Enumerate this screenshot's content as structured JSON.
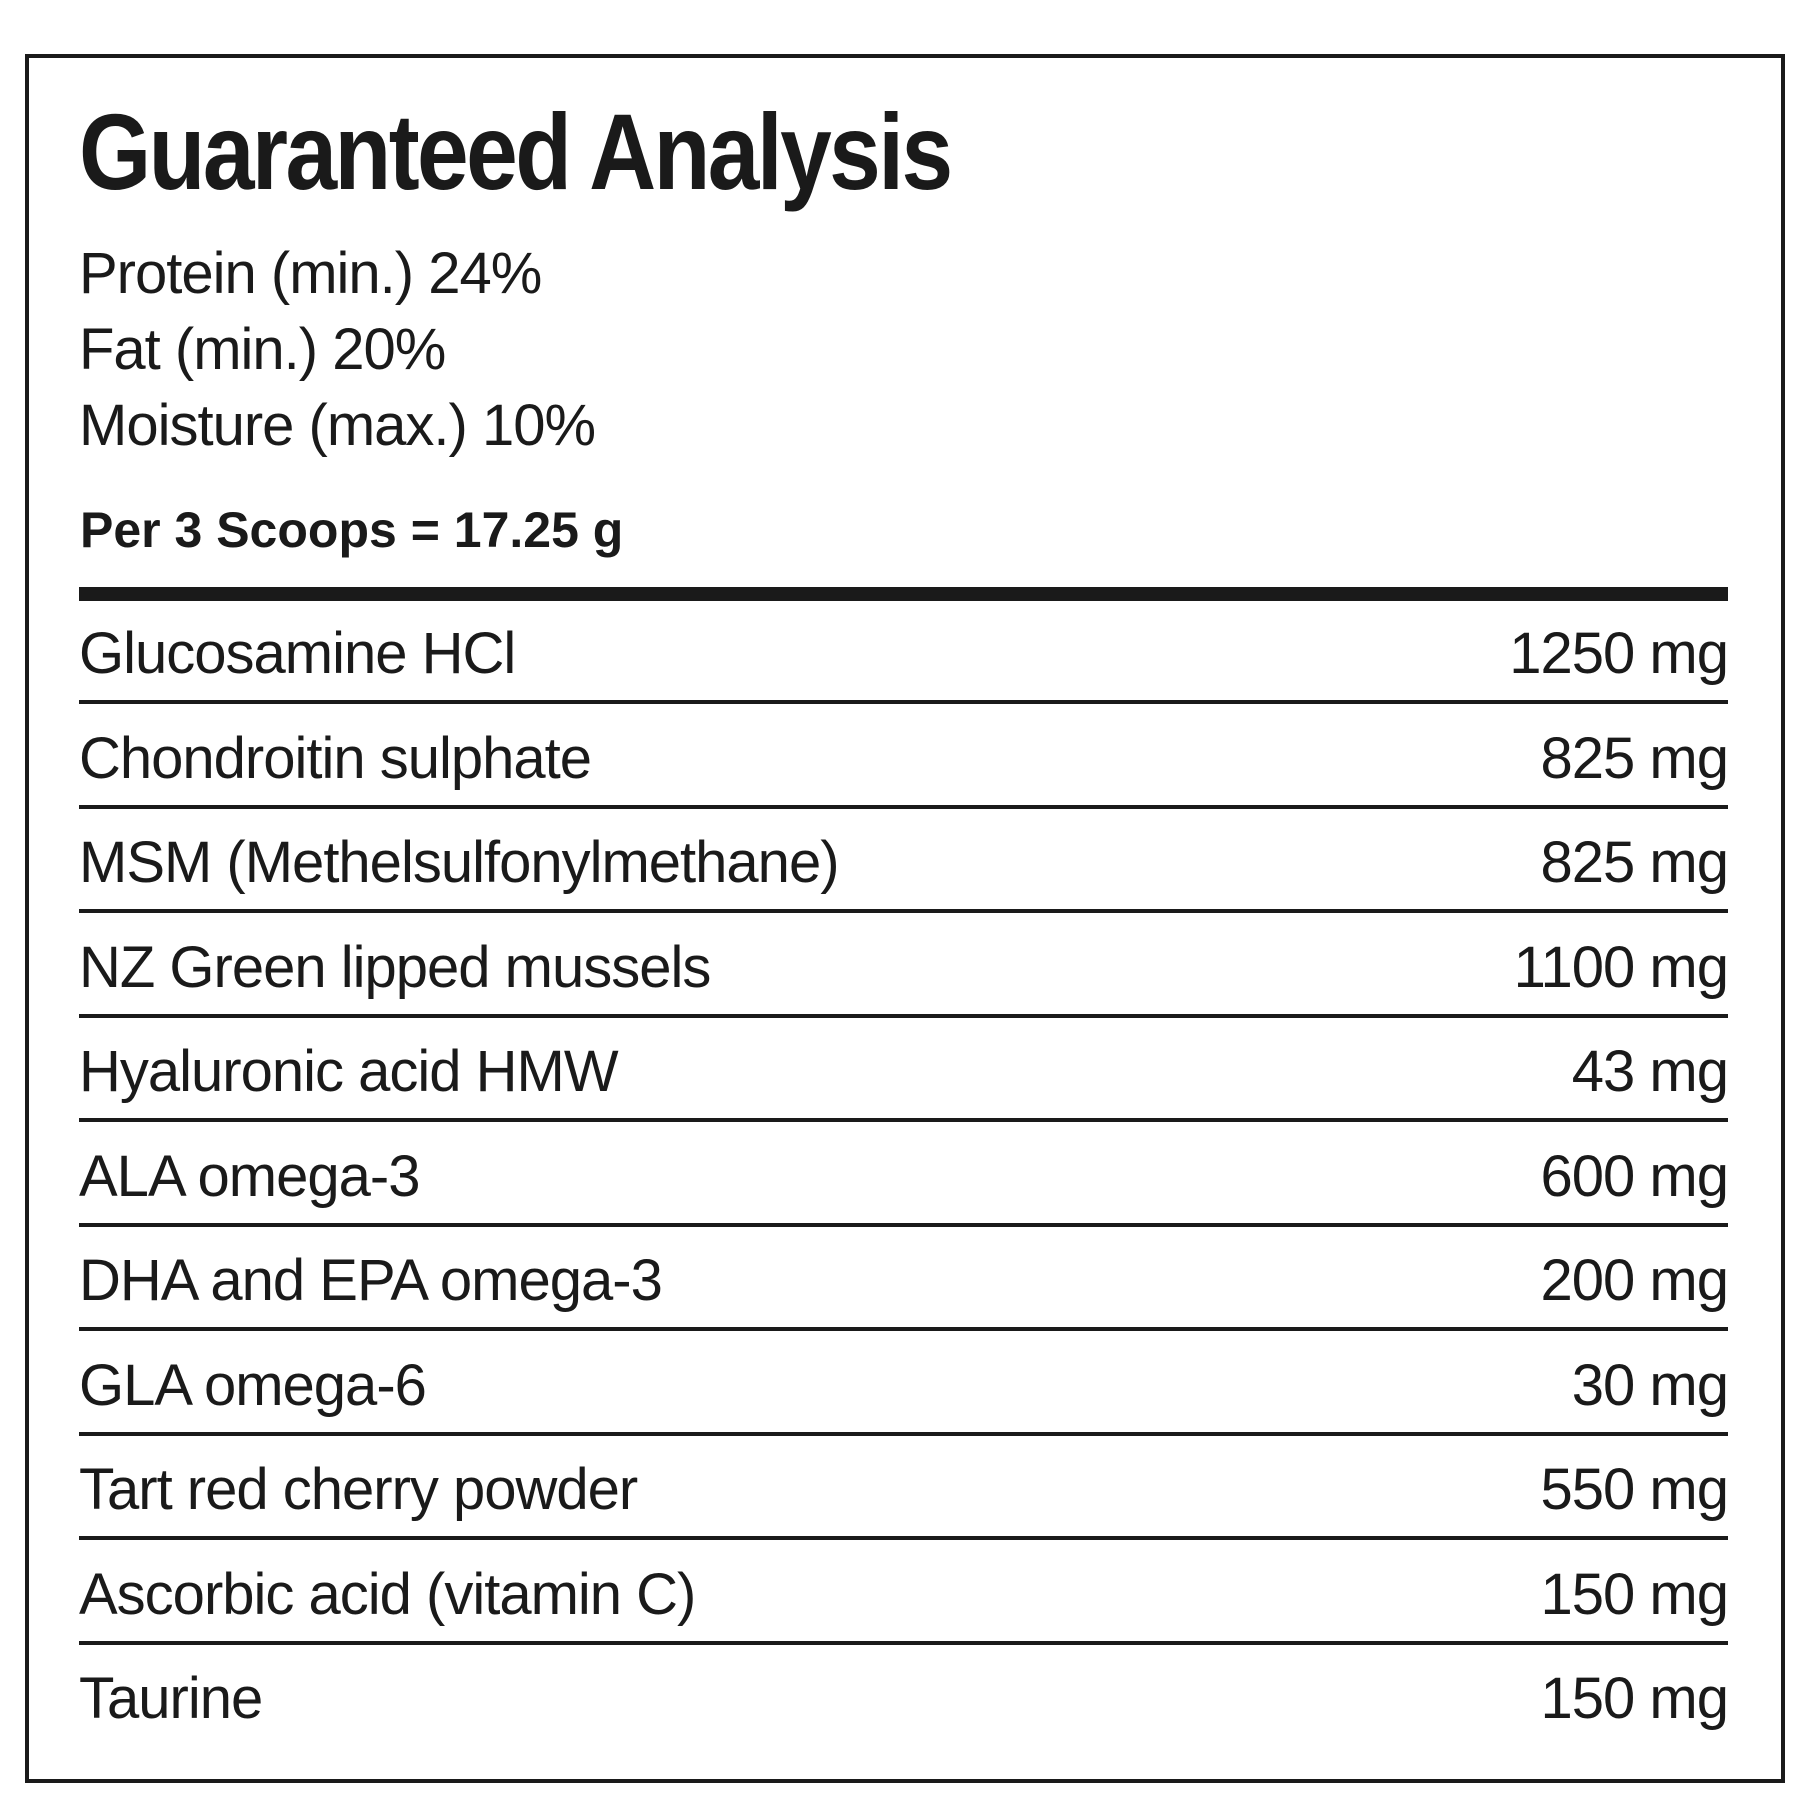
{
  "title": "Guaranteed Analysis",
  "guarantees": [
    "Protein (min.) 24%",
    "Fat (min.) 20%",
    "Moisture (max.) 10%"
  ],
  "serving": "Per 3 Scoops = 17.25 g",
  "table": {
    "rows": [
      [
        "Glucosamine HCl",
        "1250 mg"
      ],
      [
        "Chondroitin sulphate",
        "825 mg"
      ],
      [
        "MSM (Methelsulfonylmethane)",
        "825 mg"
      ],
      [
        "NZ Green lipped mussels",
        "1100 mg"
      ],
      [
        "Hyaluronic acid HMW",
        "43 mg"
      ],
      [
        "ALA omega-3",
        "600 mg"
      ],
      [
        "DHA and EPA omega-3",
        "200 mg"
      ],
      [
        "GLA omega-6",
        "30 mg"
      ],
      [
        "Tart red cherry powder",
        "550 mg"
      ],
      [
        "Ascorbic acid (vitamin C)",
        "150 mg"
      ],
      [
        "Taurine",
        "150 mg"
      ]
    ]
  }
}
